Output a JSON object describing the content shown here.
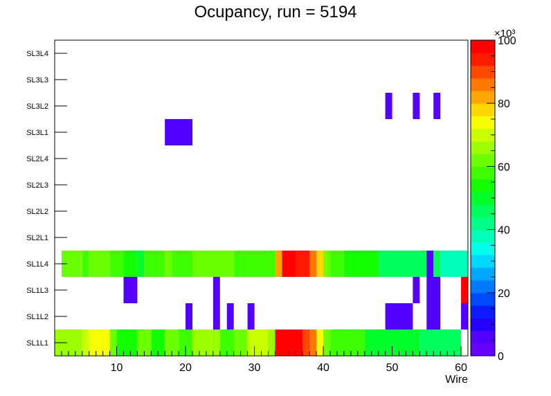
{
  "chart_data": {
    "type": "heatmap",
    "title": "Ocupancy, run = 5194",
    "xlabel": "Wire",
    "ylabel": "",
    "xlim": [
      1,
      61
    ],
    "x_ticks": [
      10,
      20,
      30,
      40,
      50,
      60
    ],
    "y_categories": [
      "SL1L1",
      "SL1L2",
      "SL1L3",
      "SL1L4",
      "SL2L1",
      "SL2L2",
      "SL2L3",
      "SL2L4",
      "SL3L1",
      "SL3L2",
      "SL3L3",
      "SL3L4"
    ],
    "z_range": [
      0,
      100000
    ],
    "z_ticks": [
      0,
      20,
      40,
      60,
      80,
      100
    ],
    "z_multiplier_label": "×10³",
    "palette": [
      "#6600ff",
      "#5200ff",
      "#2500ff",
      "#0e1bff",
      "#0049ff",
      "#0079ff",
      "#00a7ff",
      "#00d7ff",
      "#00ffe8",
      "#00ffb8",
      "#00ff88",
      "#00ff5a",
      "#00ff2a",
      "#12ff00",
      "#3eff00",
      "#6cff00",
      "#9cff00",
      "#caff00",
      "#f6ff00",
      "#ffd700",
      "#ffa700",
      "#ff7900",
      "#ff4900",
      "#ff1b00",
      "#ff0000"
    ],
    "rows": {
      "SL1L1": [
        [
          1,
          5,
          65000
        ],
        [
          5,
          6,
          70000
        ],
        [
          6,
          9,
          72000
        ],
        [
          9,
          10,
          62000
        ],
        [
          10,
          13,
          55000
        ],
        [
          13,
          15,
          60000
        ],
        [
          15,
          17,
          55000
        ],
        [
          17,
          19,
          63000
        ],
        [
          19,
          21,
          59000
        ],
        [
          21,
          25,
          65000
        ],
        [
          25,
          27,
          59000
        ],
        [
          27,
          29,
          63000
        ],
        [
          29,
          32,
          68000
        ],
        [
          32,
          33,
          65000
        ],
        [
          33,
          37,
          98000
        ],
        [
          37,
          38,
          90000
        ],
        [
          38,
          39,
          85000
        ],
        [
          39,
          40,
          72000
        ],
        [
          40,
          41,
          60000
        ],
        [
          41,
          46,
          57000
        ],
        [
          46,
          54,
          50000
        ],
        [
          54,
          60,
          46000
        ]
      ],
      "SL1L2": [
        [
          20,
          21,
          4000
        ],
        [
          24,
          25,
          4000
        ],
        [
          26,
          27,
          4000
        ],
        [
          29,
          30,
          4000
        ],
        [
          49,
          53,
          4000
        ],
        [
          55,
          57,
          4000
        ],
        [
          60,
          61,
          4000
        ]
      ],
      "SL1L3": [
        [
          11,
          13,
          4000
        ],
        [
          24,
          25,
          4000
        ],
        [
          53,
          54,
          4000
        ],
        [
          55,
          57,
          4000
        ],
        [
          60,
          61,
          97000
        ]
      ],
      "SL1L4": [
        [
          2,
          5,
          63000
        ],
        [
          5,
          6,
          57000
        ],
        [
          6,
          9,
          63000
        ],
        [
          9,
          11,
          59000
        ],
        [
          11,
          13,
          55000
        ],
        [
          13,
          14,
          50000
        ],
        [
          14,
          17,
          57000
        ],
        [
          17,
          18,
          63000
        ],
        [
          18,
          21,
          57000
        ],
        [
          21,
          27,
          62000
        ],
        [
          27,
          29,
          57000
        ],
        [
          29,
          33,
          59000
        ],
        [
          33,
          34,
          80000
        ],
        [
          34,
          36,
          97000
        ],
        [
          36,
          38,
          92000
        ],
        [
          38,
          39,
          85000
        ],
        [
          39,
          40,
          77000
        ],
        [
          40,
          41,
          60000
        ],
        [
          41,
          43,
          57000
        ],
        [
          43,
          48,
          52000
        ],
        [
          48,
          55,
          47000
        ],
        [
          55,
          56,
          4000
        ],
        [
          56,
          57,
          44000
        ],
        [
          57,
          61,
          38000
        ]
      ],
      "SL3L1": [
        [
          17,
          21,
          4000
        ]
      ],
      "SL3L2": [
        [
          49,
          50,
          4000
        ],
        [
          53,
          54,
          4000
        ],
        [
          56,
          57,
          4000
        ]
      ]
    }
  }
}
